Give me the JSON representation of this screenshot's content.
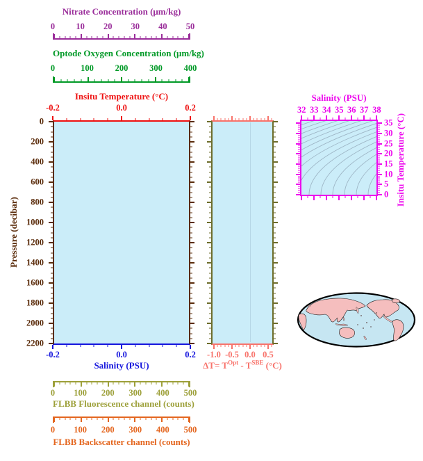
{
  "colors": {
    "nitrate": "#9A2D9A",
    "oxygen": "#009926",
    "temperature": "#EE1111",
    "pressure": "#5A2B0A",
    "salinity": "#1515DD",
    "fluorescence": "#9DA03A",
    "backscatter": "#E4661F",
    "delta_t": "#F8736B",
    "delta_sides": "#6D6D2B",
    "ts": "#ED0AED",
    "plot_fill": "#CBEDF9",
    "contour": "#9EB6C6",
    "zero_line": "#A8C8D8",
    "map_land": "#F5BEBE",
    "map_ocean": "#C6E6F2",
    "map_outline": "#000000"
  },
  "axes": {
    "nitrate": {
      "title": "Nitrate Concentration (μm/kg)",
      "ticks": [
        "0",
        "10",
        "20",
        "30",
        "40",
        "50"
      ]
    },
    "oxygen": {
      "title": "Optode Oxygen Concentration (μm/kg)",
      "ticks": [
        "0",
        "100",
        "200",
        "300",
        "400"
      ]
    },
    "temperature": {
      "title": "Insitu Temperature (°C)",
      "ticks": [
        "-0.2",
        "0.0",
        "0.2"
      ]
    },
    "pressure": {
      "title": "Pressure (decibar)",
      "ticks": [
        "0",
        "200",
        "400",
        "600",
        "800",
        "1000",
        "1200",
        "1400",
        "1600",
        "1800",
        "2000",
        "2200"
      ]
    },
    "salinity": {
      "title": "Salinity (PSU)",
      "ticks": [
        "-0.2",
        "0.0",
        "0.2"
      ]
    },
    "fluorescence": {
      "title": "FLBB Fluorescence channel (counts)",
      "ticks": [
        "0",
        "100",
        "200",
        "300",
        "400",
        "500"
      ]
    },
    "backscatter": {
      "title": "FLBB Backscatter channel (counts)",
      "ticks": [
        "0",
        "100",
        "200",
        "300",
        "400",
        "500"
      ]
    },
    "delta_t": {
      "p1": "ΔT= T",
      "sup1": "Opt",
      "p2": " - T",
      "sup2": "SBE",
      "p3": " (°C)",
      "ticks": [
        "-1.0",
        "-0.5",
        "0.0",
        "0.5"
      ]
    },
    "ts": {
      "x_title": "Salinity (PSU)",
      "x_ticks": [
        "32",
        "33",
        "34",
        "35",
        "36",
        "37",
        "38"
      ],
      "y_title": "Insitu Temperature (°C)",
      "y_ticks": [
        "35",
        "30",
        "25",
        "20",
        "15",
        "10",
        "5",
        "0"
      ]
    }
  },
  "chart_data": [
    {
      "id": "main-profile-panel",
      "type": "line",
      "description": "Empty multi-axis float profile template (no data plotted)",
      "y_axis": {
        "label": "Pressure (decibar)",
        "range": [
          0,
          2200
        ],
        "tick_step": 200,
        "reversed": true
      },
      "x_axes": [
        {
          "label": "Nitrate Concentration (μm/kg)",
          "range": [
            0,
            50
          ],
          "position": "top"
        },
        {
          "label": "Optode Oxygen Concentration (μm/kg)",
          "range": [
            0,
            400
          ],
          "position": "top"
        },
        {
          "label": "Insitu Temperature (°C)",
          "range": [
            -0.2,
            0.2
          ],
          "position": "top"
        },
        {
          "label": "Salinity (PSU)",
          "range": [
            -0.2,
            0.2
          ],
          "position": "bottom"
        },
        {
          "label": "FLBB Fluorescence channel (counts)",
          "range": [
            0,
            500
          ],
          "position": "bottom"
        },
        {
          "label": "FLBB Backscatter channel (counts)",
          "range": [
            0,
            500
          ],
          "position": "bottom"
        }
      ],
      "grid": false,
      "series": []
    },
    {
      "id": "delta-t-panel",
      "type": "line",
      "description": "Temperature difference panel (no data plotted)",
      "x_axis": {
        "label": "ΔT= T^Opt - T^SBE (°C)",
        "range": [
          -1.08,
          0.65
        ],
        "ticks": [
          -1.0,
          -0.5,
          0.0,
          0.5
        ]
      },
      "y_axis": {
        "label": "Pressure (decibar)",
        "range": [
          0,
          2200
        ],
        "reversed": true
      },
      "annotations": [
        "faint vertical reference line at ΔT = 0.0"
      ],
      "series": []
    },
    {
      "id": "ts-diagram",
      "type": "line",
      "description": "T-S diagram with background density isopycnal contours (no data plotted)",
      "x_axis": {
        "label": "Salinity (PSU)",
        "range": [
          32,
          38
        ],
        "tick_step": 1
      },
      "y_axis": {
        "label": "Insitu Temperature (°C)",
        "range": [
          0,
          35
        ],
        "tick_step": 5
      },
      "background_contours": {
        "kind": "sigma-theta isopycnals",
        "count": 16,
        "color": "#9EB6C6"
      },
      "series": []
    },
    {
      "id": "location-map",
      "type": "map",
      "description": "Pacific-centered world map, no float positions marked"
    }
  ]
}
